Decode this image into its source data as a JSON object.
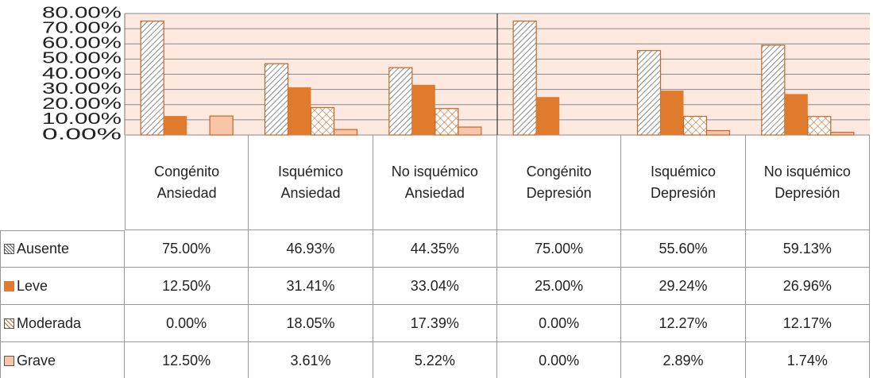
{
  "chart_data": {
    "type": "bar",
    "categories": [
      "Congénito Ansiedad",
      "Isquémico Ansiedad",
      "No isquémico Ansiedad",
      "Congénito Depresión",
      "Isquémico Depresión",
      "No isquémico Depresión"
    ],
    "series": [
      {
        "name": "Ausente",
        "color": "#c0682a",
        "pattern": "diagonal",
        "values": [
          75,
          46.93,
          44.35,
          75,
          55.6,
          59.13
        ],
        "value_labels": [
          "75.00%",
          "46.93%",
          "44.35%",
          "75.00%",
          "55.60%",
          "59.13%"
        ]
      },
      {
        "name": "Leve",
        "color": "#e07b2e",
        "pattern": "solid",
        "values": [
          12.5,
          31.41,
          33.04,
          25,
          29.24,
          26.96
        ],
        "value_labels": [
          "12.50%",
          "31.41%",
          "33.04%",
          "25.00%",
          "29.24%",
          "26.96%"
        ]
      },
      {
        "name": "Moderada",
        "color": "#c0682a",
        "pattern": "cross",
        "values": [
          0,
          18.05,
          17.39,
          0,
          12.27,
          12.17
        ],
        "value_labels": [
          "0.00%",
          "18.05%",
          "17.39%",
          "0.00%",
          "12.27%",
          "12.17%"
        ]
      },
      {
        "name": "Grave",
        "color": "#f9c5a8",
        "pattern": "solid",
        "values": [
          12.5,
          3.61,
          5.22,
          0,
          2.89,
          1.74
        ],
        "value_labels": [
          "12.50%",
          "3.61%",
          "5.22%",
          "0.00%",
          "2.89%",
          "1.74%"
        ]
      }
    ],
    "ylim": [
      0,
      80
    ],
    "yticks": [
      {
        "value": 0,
        "label": "0.00%"
      },
      {
        "value": 10,
        "label": "10.00%"
      },
      {
        "value": 20,
        "label": "20.00%"
      },
      {
        "value": 30,
        "label": "30.00%"
      },
      {
        "value": 40,
        "label": "40.00%"
      },
      {
        "value": 50,
        "label": "50.00%"
      },
      {
        "value": 60,
        "label": "60.00%"
      },
      {
        "value": 70,
        "label": "70.00%"
      },
      {
        "value": 80,
        "label": "80.00%"
      }
    ],
    "grid": true
  }
}
